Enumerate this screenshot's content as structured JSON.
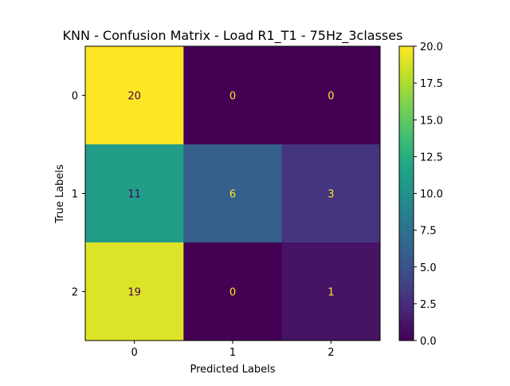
{
  "chart_data": {
    "type": "heatmap",
    "title": "KNN - Confusion Matrix - Load R1_T1 - 75Hz_3classes",
    "xlabel": "Predicted Labels",
    "ylabel": "True Labels",
    "x_categories": [
      "0",
      "1",
      "2"
    ],
    "y_categories": [
      "0",
      "1",
      "2"
    ],
    "matrix": [
      [
        20,
        0,
        0
      ],
      [
        11,
        6,
        3
      ],
      [
        19,
        0,
        1
      ]
    ],
    "colormap": "viridis",
    "vmin": 0,
    "vmax": 20,
    "colorbar_ticks": [
      "0.0",
      "2.5",
      "5.0",
      "7.5",
      "10.0",
      "12.5",
      "15.0",
      "17.5",
      "20.0"
    ],
    "grid": false
  }
}
